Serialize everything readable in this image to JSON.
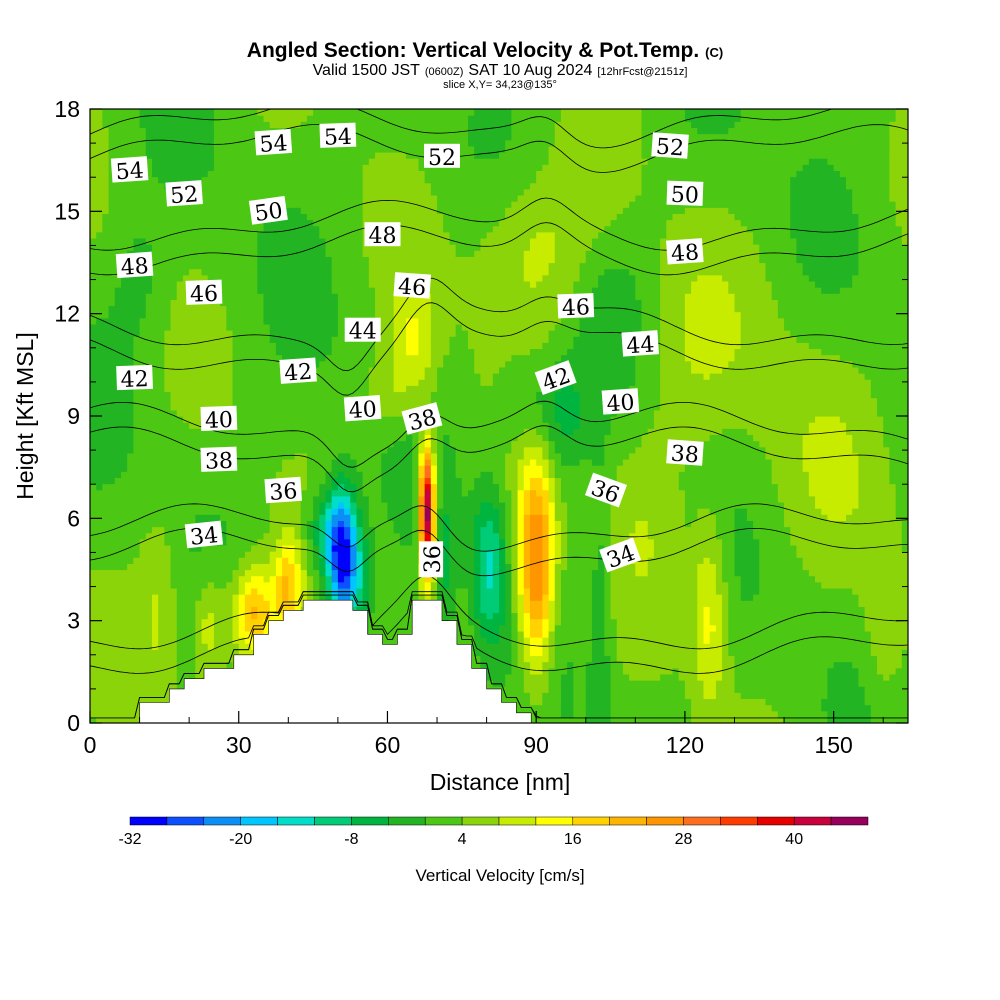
{
  "chart_data": {
    "type": "heatmap",
    "title": "Angled Section: Vertical Velocity & Pot.Temp.",
    "title_suffix": "(C)",
    "subtitle": {
      "part1": "Valid 1500 JST",
      "part2": "(0600Z)",
      "part3": "SAT 10 Aug 2024",
      "part4": "[12hrFcst@2151z]"
    },
    "slice_note": "slice X,Y= 34,23@135°",
    "xlabel": "Distance [nm]",
    "ylabel": "Height [Kft MSL]",
    "xlim": [
      0,
      165
    ],
    "ylim": [
      0,
      18
    ],
    "xticks": [
      "0",
      "30",
      "60",
      "90",
      "120",
      "150"
    ],
    "xtick_values": [
      0,
      30,
      60,
      90,
      120,
      150
    ],
    "yticks": [
      "0",
      "3",
      "6",
      "9",
      "12",
      "15",
      "18"
    ],
    "ytick_values": [
      0,
      3,
      6,
      9,
      12,
      15,
      18
    ],
    "colorbar": {
      "label": "Vertical Velocity [cm/s]",
      "tick_labels": [
        "-32",
        "-20",
        "-8",
        "4",
        "16",
        "28",
        "40"
      ],
      "tick_values": [
        -32,
        -20,
        -8,
        4,
        16,
        28,
        40
      ],
      "levels": [
        -32,
        -28,
        -24,
        -20,
        -16,
        -12,
        -8,
        -4,
        0,
        4,
        8,
        12,
        16,
        20,
        24,
        28,
        32,
        36,
        40,
        44,
        48
      ],
      "colors": [
        "#0000ff",
        "#0d50ff",
        "#0c8ff5",
        "#00c6ff",
        "#00ddc8",
        "#00cc78",
        "#00b440",
        "#22b422",
        "#4cc814",
        "#8cd40a",
        "#c8ec00",
        "#ffff00",
        "#ffd200",
        "#ffb400",
        "#ff9600",
        "#ff6e1e",
        "#ff3c00",
        "#e60000",
        "#c8003c",
        "#96005a",
        "#64009b"
      ]
    },
    "background_w": 2,
    "terrain": [
      [
        10,
        0
      ],
      [
        10,
        0.6
      ],
      [
        16,
        0.6
      ],
      [
        16,
        1.0
      ],
      [
        19,
        1.0
      ],
      [
        19,
        1.3
      ],
      [
        23,
        1.3
      ],
      [
        23,
        1.6
      ],
      [
        29,
        1.6
      ],
      [
        29,
        2.0
      ],
      [
        33,
        2.0
      ],
      [
        33,
        2.6
      ],
      [
        36,
        2.6
      ],
      [
        36,
        3.0
      ],
      [
        39,
        3.0
      ],
      [
        39,
        3.3
      ],
      [
        43,
        3.3
      ],
      [
        43,
        3.6
      ],
      [
        53,
        3.6
      ],
      [
        53,
        3.3
      ],
      [
        56,
        3.3
      ],
      [
        56,
        2.6
      ],
      [
        59,
        2.6
      ],
      [
        59,
        2.3
      ],
      [
        62,
        2.3
      ],
      [
        62,
        2.6
      ],
      [
        65,
        2.6
      ],
      [
        65,
        3.6
      ],
      [
        71,
        3.6
      ],
      [
        71,
        3.0
      ],
      [
        74,
        3.0
      ],
      [
        74,
        2.3
      ],
      [
        77,
        2.3
      ],
      [
        77,
        1.6
      ],
      [
        80,
        1.6
      ],
      [
        80,
        1.0
      ],
      [
        83,
        1.0
      ],
      [
        83,
        0.6
      ],
      [
        86,
        0.6
      ],
      [
        86,
        0.3
      ],
      [
        89,
        0.3
      ],
      [
        89,
        0
      ]
    ],
    "w_features": [
      {
        "x": 51,
        "y": 4.8,
        "sx": 2.2,
        "sy": 1.4,
        "amp": -34
      },
      {
        "x": 55,
        "y": 4.2,
        "sx": 1.5,
        "sy": 1.0,
        "amp": -8
      },
      {
        "x": 47.5,
        "y": 5.6,
        "sx": 2.8,
        "sy": 0.9,
        "amp": -12
      },
      {
        "x": 68,
        "y": 6.2,
        "sx": 1.1,
        "sy": 1.4,
        "amp": 46
      },
      {
        "x": 80.5,
        "y": 4.6,
        "sx": 2.3,
        "sy": 1.6,
        "amp": -14
      },
      {
        "x": 90,
        "y": 4.6,
        "sx": 2.6,
        "sy": 2.2,
        "amp": 28
      },
      {
        "x": 33,
        "y": 3.2,
        "sx": 3.2,
        "sy": 1.0,
        "amp": 20
      },
      {
        "x": 40,
        "y": 4.0,
        "sx": 2.0,
        "sy": 1.0,
        "amp": 16
      },
      {
        "x": 24,
        "y": 2.8,
        "sx": 2.5,
        "sy": 1.2,
        "amp": 10
      },
      {
        "x": 14,
        "y": 3.5,
        "sx": 3,
        "sy": 2,
        "amp": 6
      },
      {
        "x": 65,
        "y": 11.2,
        "sx": 3.5,
        "sy": 1.2,
        "amp": 10
      },
      {
        "x": 95,
        "y": 9.0,
        "sx": 4,
        "sy": 1.2,
        "amp": -9
      },
      {
        "x": 87,
        "y": 9.4,
        "sx": 3.5,
        "sy": 1.0,
        "amp": -6
      },
      {
        "x": 90,
        "y": 14.0,
        "sx": 9,
        "sy": 1.8,
        "amp": 8
      },
      {
        "x": 125,
        "y": 3.2,
        "sx": 2.5,
        "sy": 2,
        "amp": 11
      },
      {
        "x": 103,
        "y": 3.5,
        "sx": 1.5,
        "sy": 3,
        "amp": -6
      },
      {
        "x": 112,
        "y": 6.5,
        "sx": 6,
        "sy": 2,
        "amp": 4
      },
      {
        "x": 145,
        "y": 8.0,
        "sx": 10,
        "sy": 3,
        "amp": 4
      },
      {
        "x": 120,
        "y": 11.0,
        "sx": 8,
        "sy": 2,
        "amp": 5
      },
      {
        "x": 10,
        "y": 13.0,
        "sx": 4,
        "sy": 1.5,
        "amp": -4
      },
      {
        "x": 105,
        "y": 12.0,
        "sx": 5,
        "sy": 1.5,
        "amp": -4
      },
      {
        "x": 160,
        "y": 2.5,
        "sx": 3,
        "sy": 2,
        "amp": 5
      },
      {
        "x": 72,
        "y": 4.5,
        "sx": 1.3,
        "sy": 1.5,
        "amp": -6
      },
      {
        "x": 60,
        "y": 9.6,
        "sx": 4,
        "sy": 0.8,
        "amp": 5
      }
    ],
    "theta_levels": [
      32,
      34,
      36,
      38,
      40,
      42,
      44,
      46,
      48,
      50,
      52,
      54
    ],
    "contour_labels": [
      {
        "text": "54",
        "x": 8,
        "y": 16.2,
        "rot": -4
      },
      {
        "text": "52",
        "x": 19,
        "y": 15.5,
        "rot": -4
      },
      {
        "text": "54",
        "x": 37,
        "y": 17.0,
        "rot": -4
      },
      {
        "text": "54",
        "x": 50,
        "y": 17.2,
        "rot": -2
      },
      {
        "text": "52",
        "x": 71,
        "y": 16.6,
        "rot": 0
      },
      {
        "text": "52",
        "x": 117,
        "y": 16.9,
        "rot": 4
      },
      {
        "text": "50",
        "x": 36,
        "y": 15.0,
        "rot": -8
      },
      {
        "text": "48",
        "x": 9,
        "y": 13.4,
        "rot": -4
      },
      {
        "text": "50",
        "x": 120,
        "y": 15.5,
        "rot": 2
      },
      {
        "text": "48",
        "x": 59,
        "y": 14.3,
        "rot": 0
      },
      {
        "text": "48",
        "x": 120,
        "y": 13.8,
        "rot": -4
      },
      {
        "text": "46",
        "x": 23,
        "y": 12.6,
        "rot": -2
      },
      {
        "text": "46",
        "x": 65,
        "y": 12.8,
        "rot": 4
      },
      {
        "text": "46",
        "x": 98,
        "y": 12.2,
        "rot": -2
      },
      {
        "text": "44",
        "x": 55,
        "y": 11.5,
        "rot": 0
      },
      {
        "text": "44",
        "x": 111,
        "y": 11.1,
        "rot": -4
      },
      {
        "text": "42",
        "x": 9,
        "y": 10.1,
        "rot": -2
      },
      {
        "text": "42",
        "x": 42,
        "y": 10.3,
        "rot": -4
      },
      {
        "text": "42",
        "x": 94,
        "y": 10.1,
        "rot": -20
      },
      {
        "text": "40",
        "x": 26,
        "y": 8.9,
        "rot": -2
      },
      {
        "text": "40",
        "x": 55,
        "y": 9.2,
        "rot": -4
      },
      {
        "text": "40",
        "x": 107,
        "y": 9.4,
        "rot": -4
      },
      {
        "text": "38",
        "x": 67,
        "y": 8.9,
        "rot": -15
      },
      {
        "text": "38",
        "x": 26,
        "y": 7.7,
        "rot": -2
      },
      {
        "text": "38",
        "x": 120,
        "y": 7.9,
        "rot": 4
      },
      {
        "text": "36",
        "x": 39,
        "y": 6.8,
        "rot": -4
      },
      {
        "text": "36",
        "x": 104,
        "y": 6.8,
        "rot": 20
      },
      {
        "text": "34",
        "x": 23,
        "y": 5.5,
        "rot": -6
      },
      {
        "text": "34",
        "x": 107,
        "y": 4.9,
        "rot": -20
      },
      {
        "text": "36",
        "x": 69,
        "y": 4.8,
        "rot": -90
      }
    ],
    "grid": false,
    "legend_position": "bottom"
  }
}
